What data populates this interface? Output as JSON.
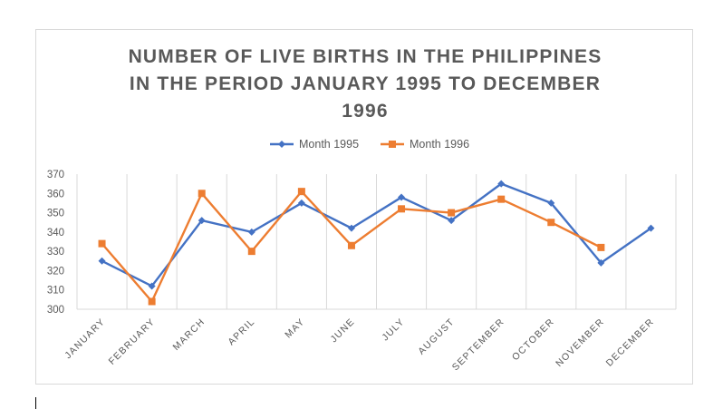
{
  "chart_data": {
    "type": "line",
    "title_lines": [
      "NUMBER OF LIVE BIRTHS IN THE PHILIPPINES",
      "IN THE PERIOD JANUARY 1995 TO DECEMBER",
      "1996"
    ],
    "categories": [
      "JANUARY",
      "FEBRUARY",
      "MARCH",
      "APRIL",
      "MAY",
      "JUNE",
      "JULY",
      "AUGUST",
      "SEPTEMBER",
      "OCTOBER",
      "NOVEMBER",
      "DECEMBER"
    ],
    "series": [
      {
        "name": "Month 1995",
        "color": "#4472c4",
        "marker": "diamond",
        "values": [
          325,
          312,
          346,
          340,
          355,
          342,
          358,
          346,
          365,
          355,
          324,
          342
        ]
      },
      {
        "name": "Month 1996",
        "color": "#ed7d31",
        "marker": "square",
        "values": [
          334,
          304,
          360,
          330,
          361,
          333,
          352,
          350,
          357,
          345,
          332,
          null
        ]
      }
    ],
    "ylim": [
      300,
      370
    ],
    "yticks": [
      300,
      310,
      320,
      330,
      340,
      350,
      360,
      370
    ],
    "grid": "vertical",
    "legend": "top-center",
    "colors": {
      "grid": "#d9d9d9",
      "text": "#595959"
    }
  }
}
